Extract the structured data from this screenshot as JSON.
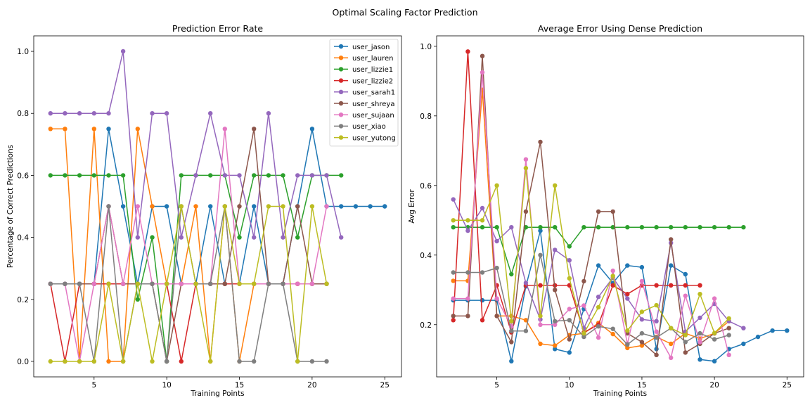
{
  "figure": {
    "suptitle": "Optimal Scaling Factor Prediction"
  },
  "chart_data": [
    {
      "type": "line",
      "title": "Prediction Error Rate",
      "xlabel": "Training Points",
      "ylabel": "Percentage of Correct Predictions",
      "xlim": [
        0.85,
        26.15
      ],
      "ylim": [
        -0.05,
        1.05
      ],
      "xticks": [
        5,
        10,
        15,
        20,
        25
      ],
      "yticks": [
        0.0,
        0.2,
        0.4,
        0.6,
        0.8,
        1.0
      ],
      "xtick_labels": [
        "5",
        "10",
        "15",
        "20",
        "25"
      ],
      "ytick_labels": [
        "0.0",
        "0.2",
        "0.4",
        "0.6",
        "0.8",
        "1.0"
      ],
      "legend": "top-right",
      "series": [
        {
          "name": "user_jason",
          "color": "#1f77b4",
          "x": [
            2,
            3,
            4,
            5,
            6,
            7,
            8,
            9,
            10,
            11,
            12,
            13,
            14,
            15,
            16,
            17,
            18,
            19,
            20,
            21,
            22,
            23,
            24,
            25
          ],
          "values": [
            0.25,
            0.25,
            0.25,
            0.25,
            0.75,
            0.5,
            0.25,
            0.5,
            0.5,
            0.25,
            0.25,
            0.5,
            0.25,
            0.25,
            0.5,
            0.25,
            0.25,
            0.5,
            0.75,
            0.5,
            0.5,
            0.5,
            0.5,
            0.5
          ]
        },
        {
          "name": "user_lauren",
          "color": "#ff7f0e",
          "x": [
            2,
            3,
            4,
            5,
            6,
            7,
            8,
            9,
            10,
            11,
            12,
            13,
            14,
            15,
            16,
            17,
            18,
            19,
            20,
            21
          ],
          "values": [
            0.75,
            0.75,
            0.0,
            0.75,
            0.0,
            0.0,
            0.75,
            0.5,
            0.25,
            0.25,
            0.5,
            0.0,
            0.5,
            0.0,
            0.25,
            0.25,
            0.25,
            0.25,
            0.25,
            0.25
          ]
        },
        {
          "name": "user_lizzie1",
          "color": "#2ca02c",
          "x": [
            2,
            3,
            4,
            5,
            6,
            7,
            8,
            9,
            10,
            11,
            12,
            13,
            14,
            15,
            16,
            17,
            18,
            19,
            20,
            21,
            22
          ],
          "values": [
            0.6,
            0.6,
            0.6,
            0.6,
            0.6,
            0.6,
            0.2,
            0.4,
            0.0,
            0.6,
            0.6,
            0.6,
            0.6,
            0.4,
            0.6,
            0.6,
            0.6,
            0.4,
            0.6,
            0.6,
            0.6
          ]
        },
        {
          "name": "user_lizzie2",
          "color": "#d62728",
          "x": [
            2,
            3,
            4,
            5,
            6,
            7,
            8,
            9,
            10,
            11,
            12,
            13,
            14,
            15,
            16,
            17,
            18,
            19
          ],
          "values": [
            0.25,
            0.0,
            0.25,
            0.25,
            0.25,
            0.25,
            0.25,
            0.25,
            0.25,
            0.0,
            0.25,
            0.25,
            0.25,
            0.25,
            0.25,
            0.25,
            0.25,
            0.25
          ]
        },
        {
          "name": "user_sarah1",
          "color": "#9467bd",
          "x": [
            2,
            3,
            4,
            5,
            6,
            7,
            8,
            9,
            10,
            11,
            12,
            13,
            14,
            15,
            16,
            17,
            18,
            19,
            20,
            21,
            22
          ],
          "values": [
            0.8,
            0.8,
            0.8,
            0.8,
            0.8,
            1.0,
            0.4,
            0.8,
            0.8,
            0.4,
            0.6,
            0.8,
            0.6,
            0.6,
            0.4,
            0.8,
            0.4,
            0.6,
            0.6,
            0.6,
            0.4
          ]
        },
        {
          "name": "user_shreya",
          "color": "#8c564b",
          "x": [
            2,
            3,
            4,
            5,
            6,
            7,
            8,
            9,
            10,
            11,
            12,
            13,
            14,
            15,
            16,
            17,
            18,
            19,
            20,
            21
          ],
          "values": [
            0.25,
            0.25,
            0.25,
            0.25,
            0.5,
            0.25,
            0.25,
            0.25,
            0.0,
            0.25,
            0.25,
            0.25,
            0.25,
            0.5,
            0.75,
            0.25,
            0.25,
            0.5,
            0.25,
            0.25
          ]
        },
        {
          "name": "user_sujaan",
          "color": "#e377c2",
          "x": [
            2,
            3,
            4,
            5,
            6,
            7,
            8,
            9,
            10,
            11,
            12,
            13,
            14,
            15,
            16,
            17,
            18,
            19,
            20,
            21
          ],
          "values": [
            0.25,
            0.25,
            0.0,
            0.25,
            0.5,
            0.25,
            0.5,
            0.25,
            0.25,
            0.25,
            0.25,
            0.25,
            0.75,
            0.25,
            0.25,
            0.25,
            0.25,
            0.25,
            0.25,
            0.5
          ]
        },
        {
          "name": "user_xiao",
          "color": "#7f7f7f",
          "x": [
            2,
            3,
            4,
            5,
            6,
            7,
            8,
            9,
            10,
            11,
            12,
            13,
            14,
            15,
            16,
            17,
            18,
            19,
            20,
            21
          ],
          "values": [
            0.25,
            0.25,
            0.25,
            0.0,
            0.5,
            0.0,
            0.25,
            0.25,
            0.0,
            0.5,
            0.25,
            0.25,
            0.5,
            0.0,
            0.0,
            0.25,
            0.25,
            0.0,
            0.0,
            0.0
          ]
        },
        {
          "name": "user_yutong",
          "color": "#bcbd22",
          "x": [
            2,
            3,
            4,
            5,
            6,
            7,
            8,
            9,
            10,
            11,
            12,
            13,
            14,
            15,
            16,
            17,
            18,
            19,
            20,
            21
          ],
          "values": [
            0.0,
            0.0,
            0.0,
            0.0,
            0.25,
            0.0,
            0.25,
            0.0,
            0.25,
            0.5,
            0.25,
            0.0,
            0.5,
            0.25,
            0.25,
            0.5,
            0.5,
            0.0,
            0.5,
            0.25
          ]
        }
      ]
    },
    {
      "type": "line",
      "title": "Average Error Using Dense Prediction",
      "xlabel": "Training Points",
      "ylabel": "Avg Error",
      "xlim": [
        0.85,
        26.15
      ],
      "ylim": [
        0.05,
        1.03
      ],
      "xticks": [
        5,
        10,
        15,
        20,
        25
      ],
      "yticks": [
        0.2,
        0.4,
        0.6,
        0.8,
        1.0
      ],
      "xtick_labels": [
        "5",
        "10",
        "15",
        "20",
        "25"
      ],
      "ytick_labels": [
        "0.2",
        "0.4",
        "0.6",
        "0.8",
        "1.0"
      ],
      "series": [
        {
          "name": "user_jason",
          "color": "#1f77b4",
          "x": [
            2,
            3,
            4,
            5,
            6,
            7,
            8,
            9,
            10,
            11,
            12,
            13,
            14,
            15,
            16,
            17,
            18,
            19,
            20,
            21,
            22,
            23,
            24,
            25
          ],
          "values": [
            0.27,
            0.27,
            0.27,
            0.27,
            0.095,
            0.31,
            0.47,
            0.13,
            0.12,
            0.245,
            0.37,
            0.32,
            0.37,
            0.365,
            0.13,
            0.37,
            0.345,
            0.1,
            0.095,
            0.13,
            0.145,
            0.165,
            0.183,
            0.183
          ]
        },
        {
          "name": "user_lauren",
          "color": "#ff7f0e",
          "x": [
            2,
            3,
            4,
            5,
            6,
            7,
            8,
            9,
            10,
            11,
            12,
            13,
            14,
            15,
            16,
            17,
            18,
            19,
            20,
            21
          ],
          "values": [
            0.326,
            0.326,
            0.875,
            0.225,
            0.225,
            0.213,
            0.145,
            0.14,
            0.17,
            0.175,
            0.205,
            0.173,
            0.133,
            0.14,
            0.165,
            0.145,
            0.175,
            0.16,
            0.175,
            0.21
          ]
        },
        {
          "name": "user_lizzie1",
          "color": "#2ca02c",
          "x": [
            2,
            3,
            4,
            5,
            6,
            7,
            8,
            9,
            10,
            11,
            12,
            13,
            14,
            15,
            16,
            17,
            18,
            19,
            20,
            21,
            22
          ],
          "values": [
            0.48,
            0.48,
            0.48,
            0.48,
            0.345,
            0.48,
            0.48,
            0.48,
            0.425,
            0.48,
            0.48,
            0.48,
            0.48,
            0.48,
            0.48,
            0.48,
            0.48,
            0.48,
            0.48,
            0.48,
            0.48
          ]
        },
        {
          "name": "user_lizzie2",
          "color": "#d62728",
          "x": [
            2,
            3,
            4,
            5,
            6,
            7,
            8,
            9,
            10,
            11,
            12,
            13,
            14,
            15,
            16,
            17,
            18,
            19
          ],
          "values": [
            0.213,
            0.985,
            0.213,
            0.313,
            0.178,
            0.313,
            0.313,
            0.313,
            0.313,
            0.178,
            0.2,
            0.313,
            0.288,
            0.313,
            0.313,
            0.313,
            0.313,
            0.313
          ]
        },
        {
          "name": "user_sarah1",
          "color": "#9467bd",
          "x": [
            2,
            3,
            4,
            5,
            6,
            7,
            8,
            9,
            10,
            11,
            12,
            13,
            14,
            15,
            16,
            17,
            18,
            19,
            20,
            21,
            22
          ],
          "values": [
            0.56,
            0.47,
            0.535,
            0.44,
            0.48,
            0.32,
            0.215,
            0.415,
            0.385,
            0.19,
            0.28,
            0.335,
            0.275,
            0.215,
            0.21,
            0.435,
            0.18,
            0.22,
            0.26,
            0.21,
            0.19
          ]
        },
        {
          "name": "user_shreya",
          "color": "#8c564b",
          "x": [
            2,
            3,
            4,
            5,
            6,
            7,
            8,
            9,
            10,
            11,
            12,
            13,
            14,
            15,
            16,
            17,
            18,
            19,
            20,
            21
          ],
          "values": [
            0.225,
            0.225,
            0.972,
            0.225,
            0.15,
            0.525,
            0.725,
            0.3,
            0.158,
            0.325,
            0.525,
            0.525,
            0.175,
            0.15,
            0.113,
            0.445,
            0.12,
            0.145,
            0.175,
            0.19
          ]
        },
        {
          "name": "user_sujaan",
          "color": "#e377c2",
          "x": [
            2,
            3,
            4,
            5,
            6,
            7,
            8,
            9,
            10,
            11,
            12,
            13,
            14,
            15,
            16,
            17,
            18,
            19,
            20,
            21
          ],
          "values": [
            0.275,
            0.275,
            0.925,
            0.275,
            0.195,
            0.675,
            0.2,
            0.2,
            0.245,
            0.255,
            0.163,
            0.355,
            0.145,
            0.325,
            0.18,
            0.105,
            0.283,
            0.15,
            0.275,
            0.113
          ]
        },
        {
          "name": "user_xiao",
          "color": "#7f7f7f",
          "x": [
            2,
            3,
            4,
            5,
            6,
            7,
            8,
            9,
            10,
            11,
            12,
            13,
            14,
            15,
            16,
            17,
            18,
            19,
            20,
            21
          ],
          "values": [
            0.35,
            0.35,
            0.35,
            0.363,
            0.182,
            0.182,
            0.4,
            0.21,
            0.213,
            0.165,
            0.195,
            0.188,
            0.143,
            0.175,
            0.163,
            0.19,
            0.15,
            0.175,
            0.158,
            0.17
          ]
        },
        {
          "name": "user_yutong",
          "color": "#bcbd22",
          "x": [
            2,
            3,
            4,
            5,
            6,
            7,
            8,
            9,
            10,
            11,
            12,
            13,
            14,
            15,
            16,
            17,
            18,
            19,
            20,
            21
          ],
          "values": [
            0.5,
            0.5,
            0.5,
            0.6,
            0.21,
            0.65,
            0.225,
            0.6,
            0.333,
            0.175,
            0.25,
            0.34,
            0.183,
            0.237,
            0.256,
            0.19,
            0.17,
            0.288,
            0.176,
            0.218
          ]
        }
      ]
    }
  ]
}
